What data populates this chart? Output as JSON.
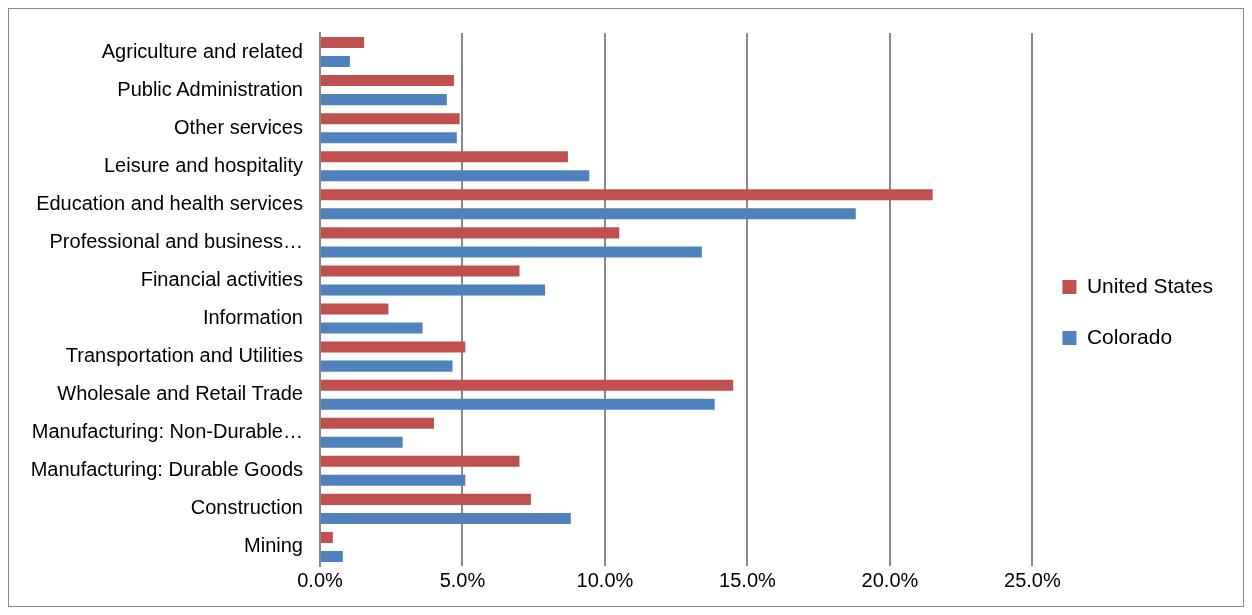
{
  "chart_data": {
    "type": "bar",
    "orientation": "horizontal",
    "categories": [
      "Agriculture and related",
      "Public Administration",
      "Other services",
      "Leisure and hospitality",
      "Education and health services",
      "Professional and business…",
      "Financial activities",
      "Information",
      "Transportation and Utilities",
      "Wholesale and Retail Trade",
      "Manufacturing: Non-Durable…",
      "Manufacturing: Durable Goods",
      "Construction",
      "Mining"
    ],
    "series": [
      {
        "name": "United States",
        "color": "#c0504d",
        "values": [
          1.55,
          4.7,
          4.9,
          8.7,
          21.5,
          10.5,
          7.0,
          2.4,
          5.1,
          14.5,
          4.0,
          7.0,
          7.4,
          0.45
        ]
      },
      {
        "name": "Colorado",
        "color": "#4f81bd",
        "values": [
          1.05,
          4.45,
          4.8,
          9.45,
          18.8,
          13.4,
          7.9,
          3.6,
          4.65,
          13.85,
          2.9,
          5.1,
          8.8,
          0.8
        ]
      }
    ],
    "xlim": [
      0,
      25
    ],
    "xticks": [
      {
        "value": 0,
        "label": "0.0%"
      },
      {
        "value": 5,
        "label": "5.0%"
      },
      {
        "value": 10,
        "label": "10.0%"
      },
      {
        "value": 15,
        "label": "15.0%"
      },
      {
        "value": 20,
        "label": "20.0%"
      },
      {
        "value": 25,
        "label": "25.0%"
      }
    ],
    "grid": "x",
    "legend": "right"
  }
}
